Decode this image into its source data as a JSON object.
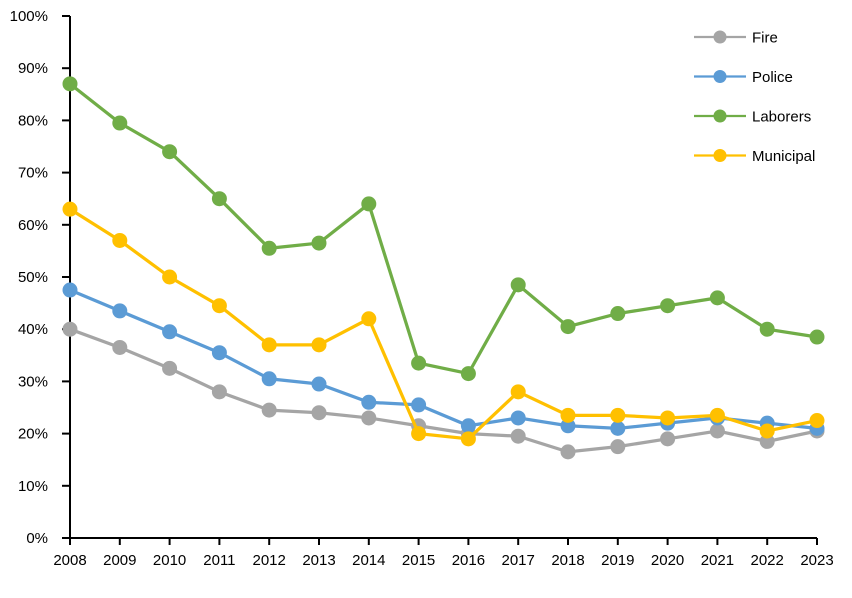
{
  "chart_data": {
    "type": "line",
    "title": "",
    "xlabel": "",
    "ylabel": "",
    "x": [
      "2008",
      "2009",
      "2010",
      "2011",
      "2012",
      "2013",
      "2014",
      "2015",
      "2016",
      "2017",
      "2018",
      "2019",
      "2020",
      "2021",
      "2022",
      "2023"
    ],
    "series": [
      {
        "name": "Fire",
        "color": "#A5A5A5",
        "values": [
          40,
          36.5,
          32.5,
          28,
          24.5,
          24,
          23,
          21.5,
          20,
          19.5,
          16.5,
          17.5,
          19,
          20.5,
          18.5,
          20.5
        ]
      },
      {
        "name": "Police",
        "color": "#5B9BD5",
        "values": [
          47.5,
          43.5,
          39.5,
          35.5,
          30.5,
          29.5,
          26,
          25.5,
          21.5,
          23,
          21.5,
          21,
          22,
          23,
          22,
          21
        ]
      },
      {
        "name": "Laborers",
        "color": "#70AD47",
        "values": [
          87,
          79.5,
          74,
          65,
          55.5,
          56.5,
          64,
          33.5,
          31.5,
          48.5,
          40.5,
          43,
          44.5,
          46,
          40,
          38.5
        ]
      },
      {
        "name": "Municipal",
        "color": "#FFC000",
        "values": [
          63,
          57,
          50,
          44.5,
          37,
          37,
          42,
          20,
          19,
          28,
          23.5,
          23.5,
          23,
          23.5,
          20.5,
          22.5
        ]
      }
    ],
    "ylim": [
      0,
      100
    ],
    "ytick_step": 10,
    "ytick_labels": [
      "0%",
      "10%",
      "20%",
      "30%",
      "40%",
      "50%",
      "60%",
      "70%",
      "80%",
      "90%",
      "100%"
    ],
    "legend": {
      "position": "top-right",
      "items": [
        "Fire",
        "Police",
        "Laborers",
        "Municipal"
      ]
    },
    "grid": false
  },
  "colors": {
    "axis": "#000000",
    "text": "#000000",
    "background": "#FFFFFF"
  }
}
